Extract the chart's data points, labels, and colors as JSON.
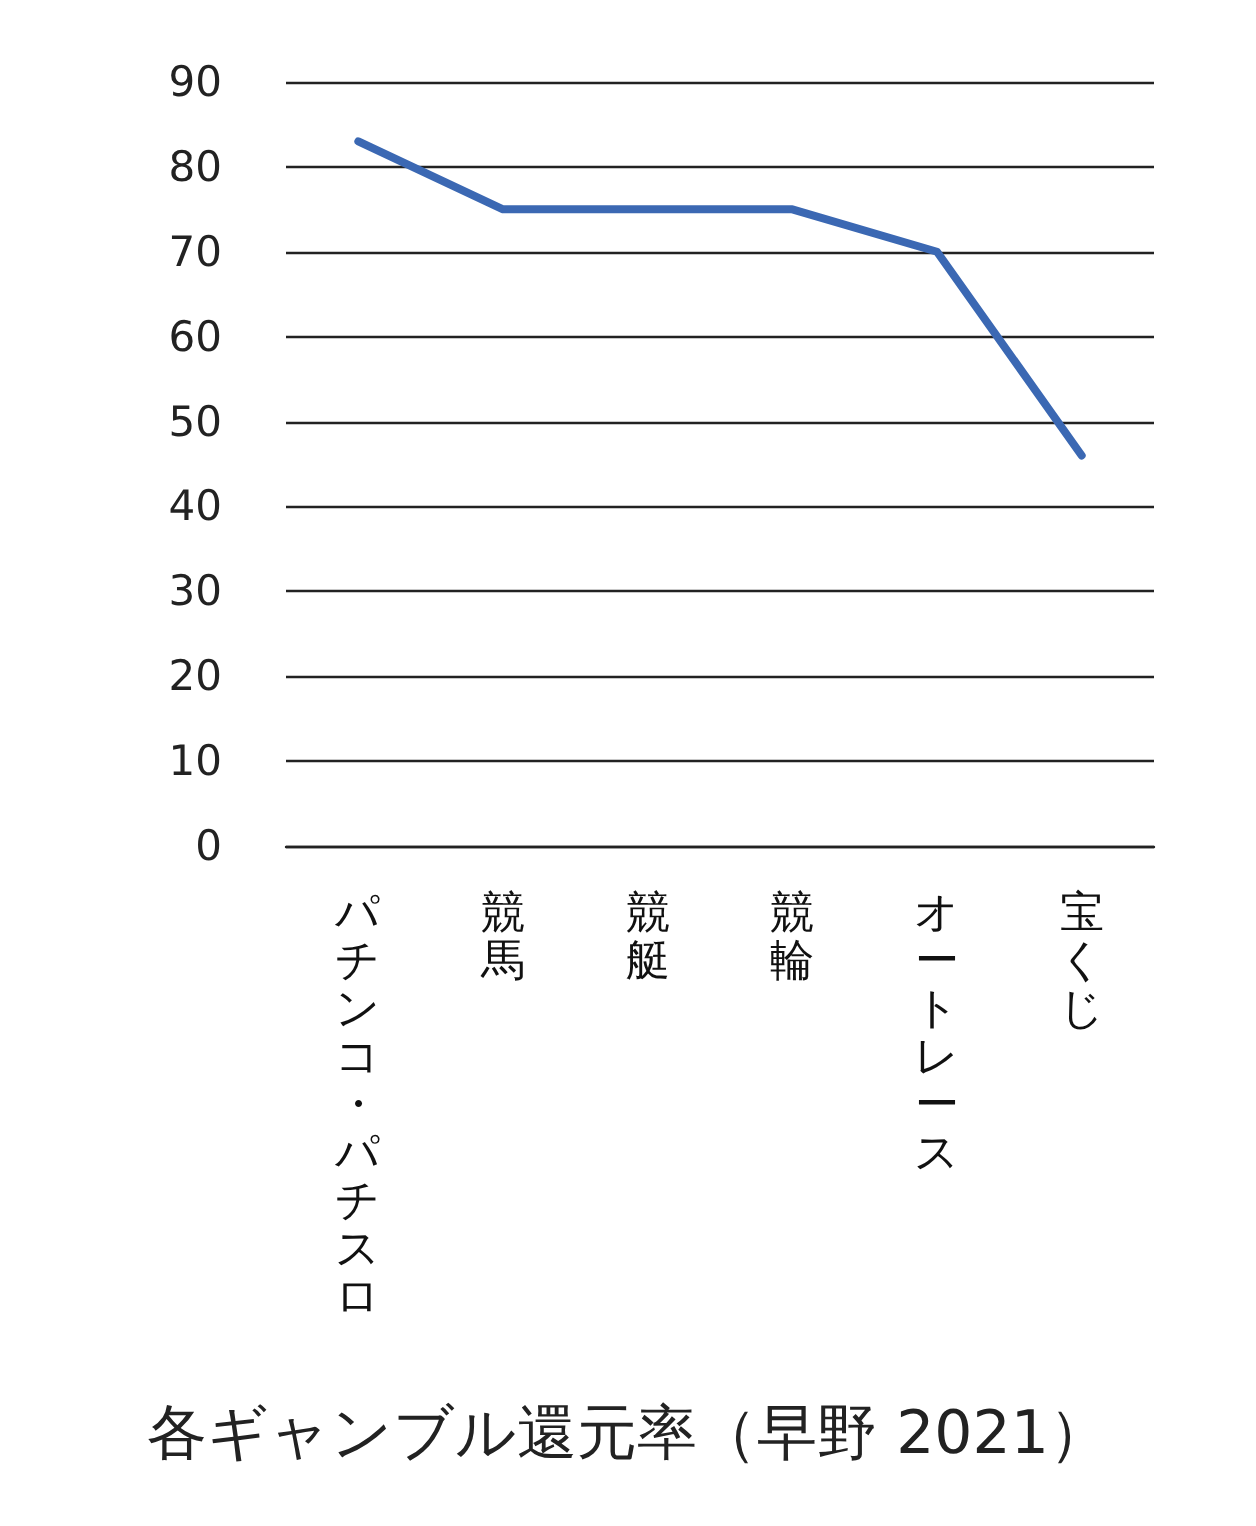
{
  "chart_data": {
    "type": "line",
    "title": "各ギャンブル還元率（早野 2021）",
    "categories": [
      "パチンコ・パチスロ",
      "競馬",
      "競艇",
      "競輪",
      "オートレース",
      "宝くじ"
    ],
    "values": [
      83,
      75,
      75,
      75,
      70,
      46
    ],
    "color": "#3b68b3",
    "ylim": [
      0,
      90
    ],
    "yticks": [
      0,
      10,
      20,
      30,
      40,
      50,
      60,
      70,
      80,
      90
    ],
    "grid": "y",
    "marker": "none",
    "line_style": "solid"
  }
}
